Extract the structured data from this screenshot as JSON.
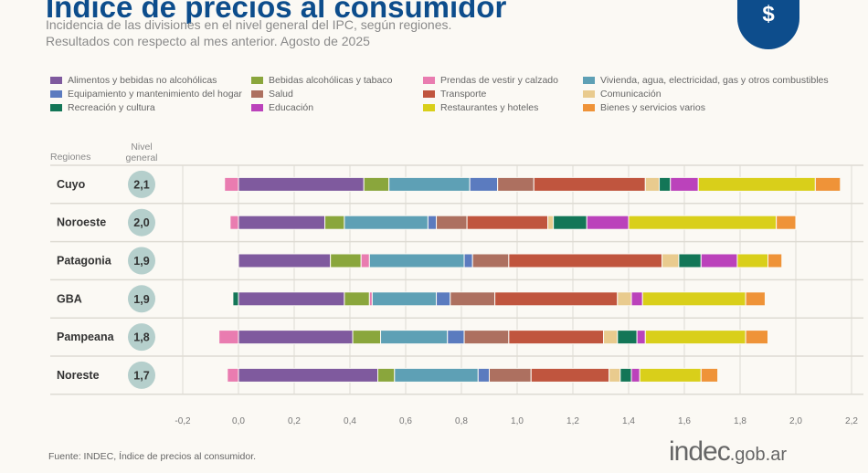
{
  "header": {
    "title": "Índice de precios al consumidor",
    "subtitle1": "Incidencia de las divisiones en el nivel general del IPC, según regiones.",
    "subtitle2": "Resultados con respecto al mes anterior. Agosto de 2025",
    "logo_icon": "dollar-document-icon",
    "logo_text": "$"
  },
  "columns": {
    "regions": "Regiones",
    "level": "Nivel general"
  },
  "footer": {
    "source": "Fuente: INDEC, Índice de precios al consumidor.",
    "brand": "indec",
    "brand_suffix": ".gob.ar"
  },
  "chart_data": {
    "type": "bar",
    "orientation": "horizontal",
    "stacked": true,
    "categories": [
      "Cuyo",
      "Noroeste",
      "Patagonia",
      "GBA",
      "Pampeana",
      "Noreste"
    ],
    "nivel_general": [
      "2,1",
      "2,0",
      "1,9",
      "1,9",
      "1,8",
      "1,7"
    ],
    "xlim": [
      -0.2,
      2.2
    ],
    "xticks": [
      "-0,2",
      "0,0",
      "0,2",
      "0,4",
      "0,6",
      "0,8",
      "1,0",
      "1,2",
      "1,4",
      "1,6",
      "1,8",
      "2,0",
      "2,2"
    ],
    "grid": true,
    "legend_position": "top",
    "series": [
      {
        "name": "Alimentos y bebidas no alcohólicas",
        "color": "#7f5a9e",
        "values": [
          0.45,
          0.31,
          0.33,
          0.38,
          0.41,
          0.5
        ]
      },
      {
        "name": "Bebidas alcohólicas y tabaco",
        "color": "#8aa63c",
        "values": [
          0.09,
          0.07,
          0.11,
          0.09,
          0.1,
          0.06
        ]
      },
      {
        "name": "Prendas de vestir y calzado",
        "color": "#e97cb0",
        "values": [
          -0.05,
          -0.03,
          0.03,
          0.01,
          -0.07,
          -0.04
        ]
      },
      {
        "name": "Vivienda, agua, electricidad, gas y otros combustibles",
        "color": "#5ea0b5",
        "values": [
          0.29,
          0.3,
          0.34,
          0.23,
          0.24,
          0.3
        ]
      },
      {
        "name": "Equipamiento y mantenimiento del hogar",
        "color": "#5b7bbf",
        "values": [
          0.1,
          0.03,
          0.03,
          0.05,
          0.06,
          0.04
        ]
      },
      {
        "name": "Salud",
        "color": "#ad7060",
        "values": [
          0.13,
          0.11,
          0.13,
          0.16,
          0.16,
          0.15
        ]
      },
      {
        "name": "Transporte",
        "color": "#c0553e",
        "values": [
          0.4,
          0.29,
          0.55,
          0.44,
          0.34,
          0.28
        ]
      },
      {
        "name": "Comunicación",
        "color": "#e9cb8e",
        "values": [
          0.05,
          0.02,
          0.06,
          0.05,
          0.05,
          0.04
        ]
      },
      {
        "name": "Recreación y cultura",
        "color": "#137657",
        "values": [
          0.04,
          0.12,
          0.08,
          -0.02,
          0.07,
          0.04
        ]
      },
      {
        "name": "Educación",
        "color": "#bb42bb",
        "values": [
          0.1,
          0.15,
          0.13,
          0.04,
          0.03,
          0.03
        ]
      },
      {
        "name": "Restaurantes y hoteles",
        "color": "#d9cf1a",
        "values": [
          0.42,
          0.53,
          0.11,
          0.37,
          0.36,
          0.22
        ]
      },
      {
        "name": "Bienes y servicios varios",
        "color": "#ef9338",
        "values": [
          0.09,
          0.07,
          0.05,
          0.07,
          0.08,
          0.06
        ]
      }
    ]
  }
}
